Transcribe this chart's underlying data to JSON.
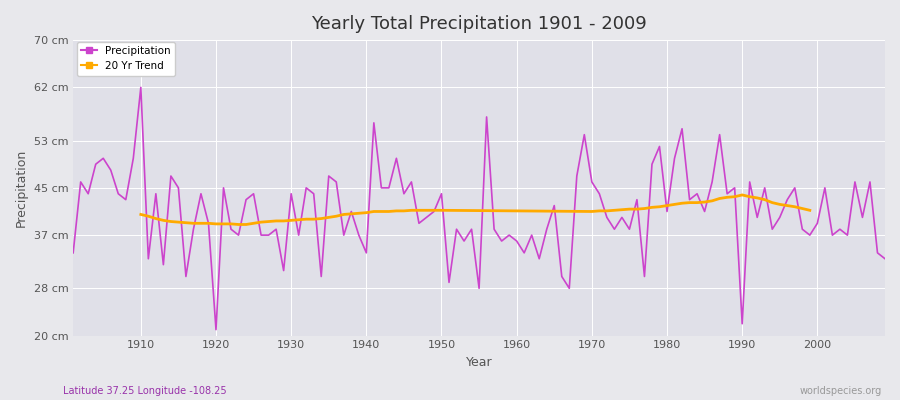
{
  "title": "Yearly Total Precipitation 1901 - 2009",
  "xlabel": "Year",
  "ylabel": "Precipitation",
  "subtitle": "Latitude 37.25 Longitude -108.25",
  "watermark": "worldspecies.org",
  "ylim": [
    20,
    70
  ],
  "yticks": [
    20,
    28,
    37,
    45,
    53,
    62,
    70
  ],
  "ytick_labels": [
    "20 cm",
    "28 cm",
    "37 cm",
    "45 cm",
    "53 cm",
    "62 cm",
    "70 cm"
  ],
  "xlim": [
    1901,
    2009
  ],
  "xticks": [
    1910,
    1920,
    1930,
    1940,
    1950,
    1960,
    1970,
    1980,
    1990,
    2000
  ],
  "precip_color": "#cc44cc",
  "trend_color": "#ffaa00",
  "bg_color": "#e8e8ec",
  "plot_bg_color": "#e0e0e8",
  "years": [
    1901,
    1902,
    1903,
    1904,
    1905,
    1906,
    1907,
    1908,
    1909,
    1910,
    1911,
    1912,
    1913,
    1914,
    1915,
    1916,
    1917,
    1918,
    1919,
    1920,
    1921,
    1922,
    1923,
    1924,
    1925,
    1926,
    1927,
    1928,
    1929,
    1930,
    1931,
    1932,
    1933,
    1934,
    1935,
    1936,
    1937,
    1938,
    1939,
    1940,
    1941,
    1942,
    1943,
    1944,
    1945,
    1946,
    1947,
    1948,
    1949,
    1950,
    1951,
    1952,
    1953,
    1954,
    1955,
    1956,
    1957,
    1958,
    1959,
    1960,
    1961,
    1962,
    1963,
    1964,
    1965,
    1966,
    1967,
    1968,
    1969,
    1970,
    1971,
    1972,
    1973,
    1974,
    1975,
    1976,
    1977,
    1978,
    1979,
    1980,
    1981,
    1982,
    1983,
    1984,
    1985,
    1986,
    1987,
    1988,
    1989,
    1990,
    1991,
    1992,
    1993,
    1994,
    1995,
    1996,
    1997,
    1998,
    1999,
    2000,
    2001,
    2002,
    2003,
    2004,
    2005,
    2006,
    2007,
    2008,
    2009
  ],
  "precipitation": [
    34,
    46,
    44,
    49,
    50,
    48,
    44,
    43,
    50,
    62,
    33,
    44,
    32,
    47,
    45,
    30,
    38,
    44,
    39,
    21,
    45,
    38,
    37,
    43,
    44,
    37,
    37,
    38,
    31,
    44,
    37,
    45,
    44,
    30,
    47,
    46,
    37,
    41,
    37,
    34,
    56,
    45,
    45,
    50,
    44,
    46,
    39,
    40,
    41,
    44,
    29,
    38,
    36,
    38,
    28,
    57,
    38,
    36,
    37,
    36,
    34,
    37,
    33,
    38,
    42,
    30,
    28,
    47,
    54,
    46,
    44,
    40,
    38,
    40,
    38,
    43,
    30,
    49,
    52,
    41,
    50,
    55,
    43,
    44,
    41,
    46,
    54,
    44,
    45,
    22,
    46,
    40,
    45,
    38,
    40,
    43,
    45,
    38,
    37,
    39,
    45,
    37,
    38,
    37,
    46,
    40,
    46,
    34,
    33
  ],
  "trend_years": [
    1910,
    1911,
    1912,
    1913,
    1914,
    1915,
    1916,
    1917,
    1918,
    1919,
    1920,
    1921,
    1922,
    1923,
    1924,
    1925,
    1926,
    1927,
    1928,
    1929,
    1930,
    1931,
    1932,
    1933,
    1934,
    1935,
    1936,
    1937,
    1938,
    1939,
    1940,
    1941,
    1942,
    1943,
    1944,
    1945,
    1946,
    1947,
    1948,
    1949,
    1950,
    1970,
    1971,
    1972,
    1973,
    1974,
    1975,
    1976,
    1977,
    1978,
    1979,
    1980,
    1981,
    1982,
    1983,
    1984,
    1985,
    1986,
    1987,
    1988,
    1989,
    1990,
    1991,
    1992,
    1993,
    1994,
    1995,
    1996,
    1997,
    1998,
    1999
  ],
  "trend_values": [
    40.5,
    40.2,
    39.8,
    39.5,
    39.3,
    39.2,
    39.1,
    39.0,
    39.0,
    39.0,
    38.9,
    38.9,
    38.9,
    38.8,
    38.8,
    39.0,
    39.2,
    39.3,
    39.4,
    39.4,
    39.5,
    39.6,
    39.7,
    39.7,
    39.8,
    40.0,
    40.2,
    40.5,
    40.6,
    40.7,
    40.8,
    41.0,
    41.0,
    41.0,
    41.1,
    41.1,
    41.2,
    41.2,
    41.2,
    41.2,
    41.2,
    41.0,
    41.1,
    41.1,
    41.2,
    41.3,
    41.4,
    41.4,
    41.5,
    41.7,
    41.8,
    42.0,
    42.2,
    42.4,
    42.5,
    42.5,
    42.6,
    42.8,
    43.2,
    43.4,
    43.5,
    43.8,
    43.5,
    43.3,
    43.0,
    42.5,
    42.2,
    42.0,
    41.8,
    41.5,
    41.2
  ]
}
